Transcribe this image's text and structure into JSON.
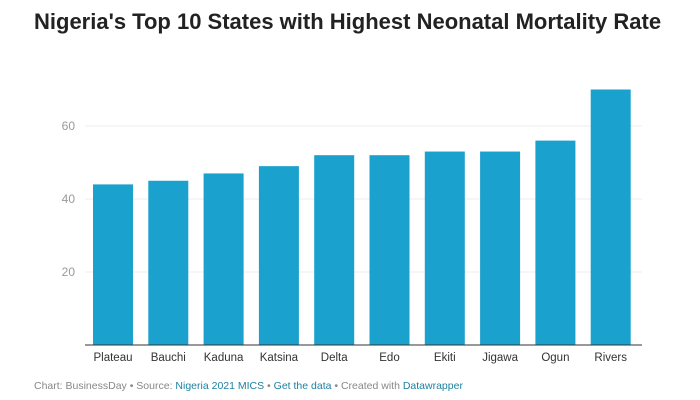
{
  "chart_data": {
    "type": "bar",
    "title": "Nigeria's Top 10 States with Highest Neonatal Mortality Rate",
    "categories": [
      "Plateau",
      "Bauchi",
      "Kaduna",
      "Katsina",
      "Delta",
      "Edo",
      "Ekiti",
      "Jigawa",
      "Ogun",
      "Rivers"
    ],
    "values": [
      44,
      45,
      47,
      49,
      52,
      52,
      53,
      53,
      56,
      70
    ],
    "xlabel": "",
    "ylabel": "",
    "ylim": [
      0,
      70
    ],
    "yticks": [
      20,
      40,
      60
    ],
    "grid": true,
    "bar_color": "#1aa1cd"
  },
  "footer": {
    "chart_by": "Chart: BusinessDay",
    "sep1": " • Source: ",
    "source": "Nigeria 2021 MICS",
    "sep2": " • ",
    "get_data": "Get the data",
    "sep3": " • Created with ",
    "created_with": "Datawrapper"
  }
}
